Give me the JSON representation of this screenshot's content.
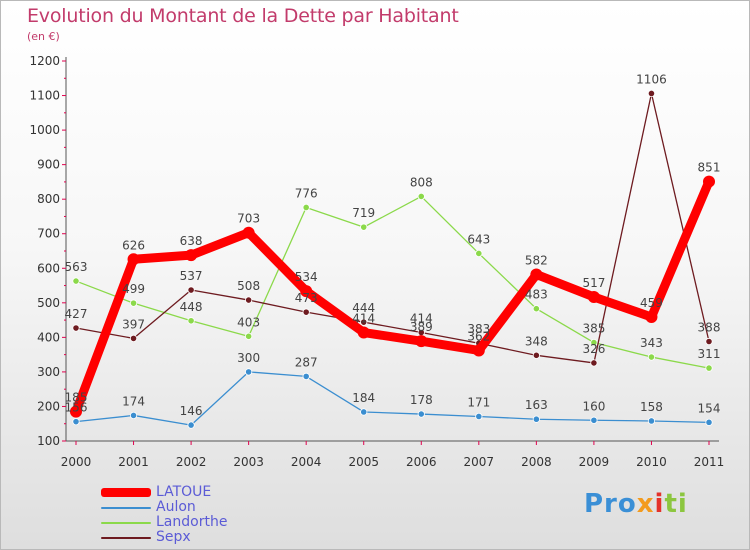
{
  "title": "Evolution du Montant de la Dette par Habitant",
  "subtitle": "(en €)",
  "logo": {
    "p1": "Pro",
    "p2": "x",
    "p3": "i",
    "p4": "ti"
  },
  "colors": {
    "LATOUE": "#ff0000",
    "Aulon": "#3b8ed0",
    "Landorthe": "#8bd94a",
    "Sepx": "#6e1b20",
    "axis": "#555555",
    "axis_ticks": "#e0004d"
  },
  "chart_data": {
    "type": "line",
    "title": "Evolution du Montant de la Dette par Habitant",
    "ylabel": "(en €)",
    "xlabel": "",
    "ylim": [
      100,
      1200
    ],
    "y_ticks": [
      100,
      200,
      300,
      400,
      500,
      600,
      700,
      800,
      900,
      1000,
      1100,
      1200
    ],
    "categories": [
      "2000",
      "2001",
      "2002",
      "2003",
      "2004",
      "2005",
      "2006",
      "2007",
      "2008",
      "2009",
      "2010",
      "2011"
    ],
    "grid": false,
    "legend_position": "bottom-left",
    "series": [
      {
        "name": "LATOUE",
        "values": [
          185,
          626,
          638,
          703,
          534,
          414,
          389,
          362,
          582,
          517,
          459,
          851
        ],
        "labels": [
          "185",
          "626",
          "638",
          "703",
          "534",
          "414",
          "389",
          "362",
          "582",
          "517",
          "459",
          "851"
        ],
        "emphasis": true
      },
      {
        "name": "Aulon",
        "values": [
          156,
          174,
          146,
          300,
          287,
          184,
          178,
          171,
          163,
          160,
          158,
          154
        ],
        "labels": [
          "156",
          "174",
          "146",
          "300",
          "287",
          "184",
          "178",
          "171",
          "163",
          "160",
          "158",
          "154"
        ]
      },
      {
        "name": "Landorthe",
        "values": [
          563,
          499,
          448,
          403,
          776,
          719,
          808,
          643,
          483,
          385,
          343,
          311
        ],
        "labels": [
          "563",
          "499",
          "448",
          "403",
          "776",
          "719",
          "808",
          "643",
          "483",
          "385",
          "343",
          "311"
        ]
      },
      {
        "name": "Sepx",
        "values": [
          427,
          397,
          537,
          508,
          473,
          444,
          414,
          383,
          348,
          326,
          1106,
          388
        ],
        "labels": [
          "427",
          "397",
          "537",
          "508",
          "473",
          "444",
          "414",
          "383",
          "348",
          "326",
          "1106",
          "388"
        ]
      }
    ]
  }
}
